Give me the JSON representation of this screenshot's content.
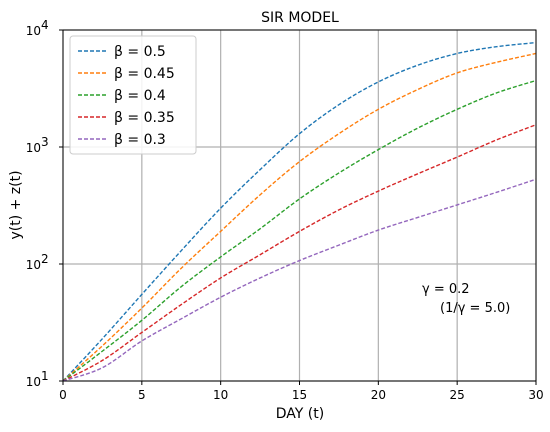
{
  "chart_data": {
    "type": "line",
    "title": "SIR MODEL",
    "xlabel": "DAY (t)",
    "ylabel": "y(t) + z(t)",
    "xlim": [
      0,
      30
    ],
    "ylim": [
      10,
      10000
    ],
    "y_scale": "log",
    "grid": true,
    "legend_position": "top-left",
    "x_ticks": [
      0,
      5,
      10,
      15,
      20,
      25,
      30
    ],
    "y_ticks": [
      {
        "value": 10,
        "base": "10",
        "exp": "1"
      },
      {
        "value": 100,
        "base": "10",
        "exp": "2"
      },
      {
        "value": 1000,
        "base": "10",
        "exp": "3"
      },
      {
        "value": 10000,
        "base": "10",
        "exp": "4"
      }
    ],
    "x": [
      0,
      2.5,
      5,
      7.5,
      10,
      12.5,
      15,
      17.5,
      20,
      22.5,
      25,
      27.5,
      30
    ],
    "series": [
      {
        "name": "β = 0.5",
        "color": "#1f77b4",
        "values": [
          10,
          23,
          55,
          130,
          300,
          640,
          1300,
          2300,
          3600,
          5000,
          6300,
          7200,
          7800
        ]
      },
      {
        "name": "β = 0.45",
        "color": "#ff7f0e",
        "values": [
          10,
          20,
          42,
          92,
          190,
          390,
          750,
          1300,
          2100,
          3100,
          4300,
          5300,
          6300
        ]
      },
      {
        "name": "β = 0.4",
        "color": "#2ca02c",
        "values": [
          10,
          18,
          33,
          64,
          115,
          200,
          360,
          600,
          950,
          1450,
          2100,
          2900,
          3700
        ]
      },
      {
        "name": "β = 0.35",
        "color": "#d62728",
        "values": [
          10,
          15,
          26,
          45,
          76,
          120,
          190,
          290,
          420,
          590,
          820,
          1150,
          1550
        ]
      },
      {
        "name": "β = 0.3",
        "color": "#9467bd",
        "values": [
          10,
          13,
          22,
          34,
          52,
          76,
          107,
          145,
          195,
          250,
          320,
          410,
          530
        ]
      }
    ],
    "annotations": {
      "gamma": "γ = 0.2",
      "inverse_gamma": "(1/γ = 5.0)"
    }
  }
}
